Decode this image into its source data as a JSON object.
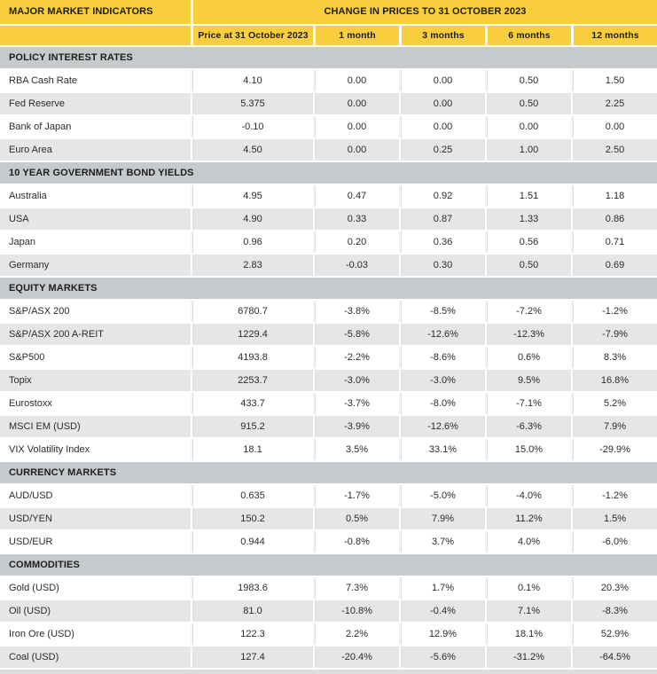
{
  "colors": {
    "header_yellow": "#f9ce3d",
    "section_header_gray": "#c7cacc",
    "row_alt_gray": "#e6e6e8",
    "row_white": "#ffffff",
    "bottom_strip_gray": "#dbddde",
    "text_black": "#1d1d1b"
  },
  "chart_data": {
    "type": "table",
    "title": "MAJOR MARKET INDICATORS",
    "subtitle": "CHANGE IN PRICES TO 31 OCTOBER 2023",
    "column_headers": [
      "Price at 31 October 2023",
      "1 month",
      "3 months",
      "6 months",
      "12 months"
    ],
    "sections": [
      {
        "title": "POLICY INTEREST RATES",
        "rows": [
          {
            "label": "RBA Cash Rate",
            "values": [
              "4.10",
              "0.00",
              "0.00",
              "0.50",
              "1.50"
            ]
          },
          {
            "label": "Fed Reserve",
            "values": [
              "5.375",
              "0.00",
              "0.00",
              "0.50",
              "2.25"
            ]
          },
          {
            "label": "Bank of Japan",
            "values": [
              "-0.10",
              "0.00",
              "0.00",
              "0.00",
              "0.00"
            ]
          },
          {
            "label": "Euro Area",
            "values": [
              "4.50",
              "0.00",
              "0.25",
              "1.00",
              "2.50"
            ]
          }
        ]
      },
      {
        "title": "10 YEAR GOVERNMENT BOND YIELDS",
        "rows": [
          {
            "label": "Australia",
            "values": [
              "4.95",
              "0.47",
              "0.92",
              "1.51",
              "1.18"
            ]
          },
          {
            "label": "USA",
            "values": [
              "4.90",
              "0.33",
              "0.87",
              "1.33",
              "0.86"
            ]
          },
          {
            "label": "Japan",
            "values": [
              "0.96",
              "0.20",
              "0.36",
              "0.56",
              "0.71"
            ]
          },
          {
            "label": "Germany",
            "values": [
              "2.83",
              "-0.03",
              "0.30",
              "0.50",
              "0.69"
            ]
          }
        ]
      },
      {
        "title": "EQUITY MARKETS",
        "rows": [
          {
            "label": "S&P/ASX 200",
            "values": [
              "6780.7",
              "-3.8%",
              "-8.5%",
              "-7.2%",
              "-1.2%"
            ]
          },
          {
            "label": "S&P/ASX 200 A-REIT",
            "values": [
              "1229.4",
              "-5.8%",
              "-12.6%",
              "-12.3%",
              "-7.9%"
            ]
          },
          {
            "label": "S&P500",
            "values": [
              "4193.8",
              "-2.2%",
              "-8.6%",
              "0.6%",
              "8.3%"
            ]
          },
          {
            "label": "Topix",
            "values": [
              "2253.7",
              "-3.0%",
              "-3.0%",
              "9.5%",
              "16.8%"
            ]
          },
          {
            "label": "Eurostoxx",
            "values": [
              "433.7",
              "-3.7%",
              "-8.0%",
              "-7.1%",
              "5.2%"
            ]
          },
          {
            "label": "MSCI EM (USD)",
            "values": [
              "915.2",
              "-3.9%",
              "-12.6%",
              "-6.3%",
              "7.9%"
            ]
          },
          {
            "label": "VIX Volatility Index",
            "values": [
              "18.1",
              "3.5%",
              "33.1%",
              "15.0%",
              "-29.9%"
            ]
          }
        ]
      },
      {
        "title": "CURRENCY MARKETS",
        "rows": [
          {
            "label": "AUD/USD",
            "values": [
              "0.635",
              "-1.7%",
              "-5.0%",
              "-4.0%",
              "-1.2%"
            ]
          },
          {
            "label": "USD/YEN",
            "values": [
              "150.2",
              "0.5%",
              "7.9%",
              "11.2%",
              "1.5%"
            ]
          },
          {
            "label": "USD/EUR",
            "values": [
              "0.944",
              "-0.8%",
              "3.7%",
              "4.0%",
              "-6.0%"
            ]
          }
        ]
      },
      {
        "title": "COMMODITIES",
        "rows": [
          {
            "label": "Gold (USD)",
            "values": [
              "1983.6",
              "7.3%",
              "1.7%",
              "0.1%",
              "20.3%"
            ]
          },
          {
            "label": "Oil (USD)",
            "values": [
              "81.0",
              "-10.8%",
              "-0.4%",
              "7.1%",
              "-8.3%"
            ]
          },
          {
            "label": "Iron Ore (USD)",
            "values": [
              "122.3",
              "2.2%",
              "12.9%",
              "18.1%",
              "52.9%"
            ]
          },
          {
            "label": "Coal (USD)",
            "values": [
              "127.4",
              "-20.4%",
              "-5.6%",
              "-31.2%",
              "-64.5%"
            ]
          }
        ]
      }
    ]
  }
}
